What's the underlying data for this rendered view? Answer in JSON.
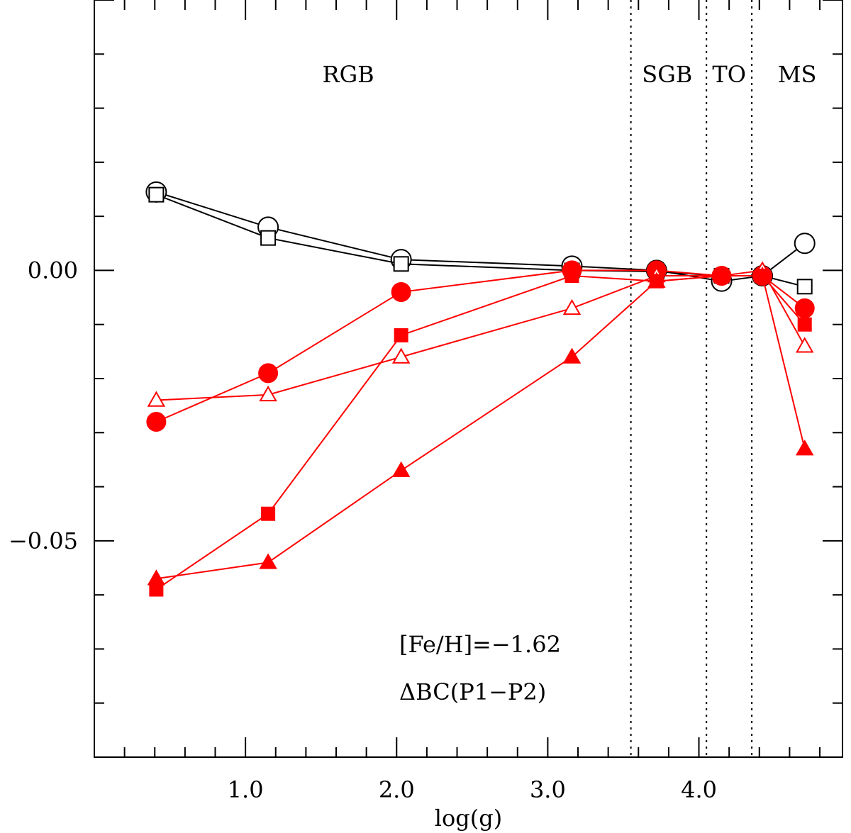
{
  "chart_data": {
    "type": "line",
    "title": "",
    "xlabel": "log(g)",
    "ylabel": "",
    "xlim": [
      0.0,
      4.95
    ],
    "ylim": [
      -0.09,
      0.05
    ],
    "x_ticks": [
      {
        "value": 1.0,
        "label": "1.0"
      },
      {
        "value": 2.0,
        "label": "2.0"
      },
      {
        "value": 3.0,
        "label": "3.0"
      },
      {
        "value": 4.0,
        "label": "4.0"
      }
    ],
    "y_ticks": [
      {
        "value": 0.0,
        "label": "0.00"
      },
      {
        "value": -0.05,
        "label": "−0.05"
      }
    ],
    "region_dividers": [
      3.55,
      4.05,
      4.35
    ],
    "region_labels": [
      {
        "text": "RGB",
        "x": 1.68
      },
      {
        "text": "SGB",
        "x": 3.79
      },
      {
        "text": "TO",
        "x": 4.2
      },
      {
        "text": "MS",
        "x": 4.65
      }
    ],
    "annotations": [
      "[Fe/H]=−1.62",
      "ΔBC(P1−P2)"
    ],
    "x": [
      0.41,
      1.15,
      2.03,
      3.16,
      3.72,
      4.15,
      4.42,
      4.7
    ],
    "series": [
      {
        "name": "black open circle",
        "color": "#000000",
        "marker": "circle",
        "filled": false,
        "values": [
          0.0145,
          0.008,
          0.002,
          0.0008,
          0.0,
          -0.002,
          -0.001,
          0.005
        ]
      },
      {
        "name": "black open square",
        "color": "#000000",
        "marker": "square",
        "filled": false,
        "values": [
          0.014,
          0.006,
          0.0012,
          0.0,
          -0.0002,
          -0.001,
          -0.001,
          -0.003
        ]
      },
      {
        "name": "red filled circle",
        "color": "#ff0000",
        "marker": "circle",
        "filled": true,
        "values": [
          -0.028,
          -0.019,
          -0.004,
          0.0,
          0.0,
          -0.001,
          -0.001,
          -0.007
        ]
      },
      {
        "name": "red open triangle",
        "color": "#ff0000",
        "marker": "triangle",
        "filled": false,
        "values": [
          -0.024,
          -0.023,
          -0.016,
          -0.007,
          -0.001,
          -0.001,
          0.0,
          -0.014
        ]
      },
      {
        "name": "red filled square",
        "color": "#ff0000",
        "marker": "square",
        "filled": true,
        "values": [
          -0.059,
          -0.045,
          -0.012,
          -0.001,
          -0.002,
          -0.001,
          -0.001,
          -0.01
        ]
      },
      {
        "name": "red filled triangle",
        "color": "#ff0000",
        "marker": "triangle",
        "filled": true,
        "values": [
          -0.057,
          -0.054,
          -0.037,
          -0.016,
          -0.002,
          -0.001,
          -0.001,
          -0.033
        ]
      }
    ]
  }
}
